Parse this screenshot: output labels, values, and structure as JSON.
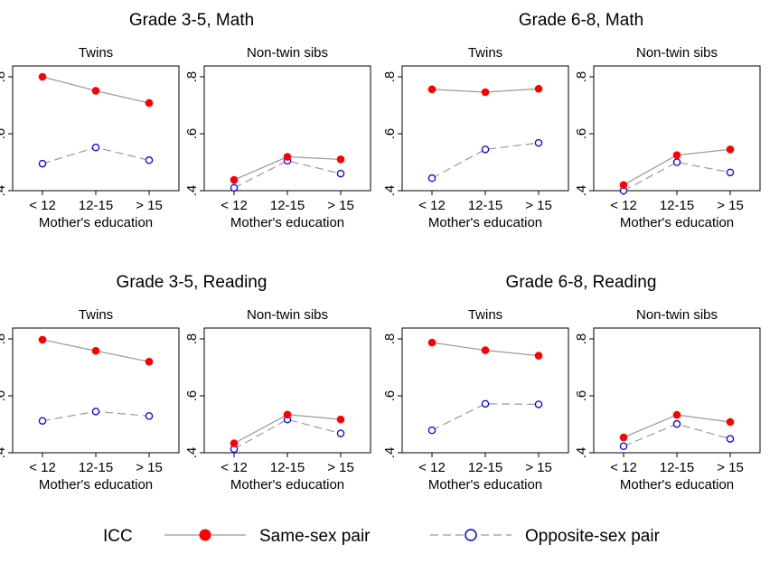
{
  "chart_data": {
    "type": "line",
    "categories": [
      "< 12",
      "12-15",
      "> 15"
    ],
    "xlabel": "Mother's education",
    "yticks": [
      ".4",
      ".6",
      ".8"
    ],
    "ylim": [
      0.4,
      0.8
    ],
    "colors": {
      "same": "#ff0000",
      "opposite": "#0000ff",
      "same_line": "#999999",
      "opposite_line": "#999999"
    },
    "legend": {
      "title": "ICC",
      "same_label": "Same-sex pair",
      "opposite_label": "Opposite-sex pair",
      "placement": "bottom"
    },
    "groups": [
      {
        "title": "Grade 3-5, Math",
        "panels": [
          {
            "title": "Twins",
            "same": [
              0.8,
              0.751,
              0.708
            ],
            "opposite": [
              0.495,
              0.552,
              0.507
            ]
          },
          {
            "title": "Non-twin sibs",
            "same": [
              0.438,
              0.519,
              0.51
            ],
            "opposite": [
              0.41,
              0.505,
              0.46
            ]
          }
        ]
      },
      {
        "title": "Grade 6-8, Math",
        "panels": [
          {
            "title": "Twins",
            "same": [
              0.756,
              0.746,
              0.758
            ],
            "opposite": [
              0.444,
              0.545,
              0.568
            ]
          },
          {
            "title": "Non-twin sibs",
            "same": [
              0.42,
              0.525,
              0.545
            ],
            "opposite": [
              0.4,
              0.5,
              0.464
            ]
          }
        ]
      },
      {
        "title": "Grade 3-5, Reading",
        "panels": [
          {
            "title": "Twins",
            "same": [
              0.797,
              0.758,
              0.72
            ],
            "opposite": [
              0.512,
              0.545,
              0.529
            ]
          },
          {
            "title": "Non-twin sibs",
            "same": [
              0.433,
              0.534,
              0.517
            ],
            "opposite": [
              0.413,
              0.517,
              0.468
            ]
          }
        ]
      },
      {
        "title": "Grade 6-8, Reading",
        "panels": [
          {
            "title": "Twins",
            "same": [
              0.787,
              0.76,
              0.741
            ],
            "opposite": [
              0.479,
              0.572,
              0.57
            ]
          },
          {
            "title": "Non-twin sibs",
            "same": [
              0.454,
              0.533,
              0.508
            ],
            "opposite": [
              0.423,
              0.501,
              0.449
            ]
          }
        ]
      }
    ]
  }
}
